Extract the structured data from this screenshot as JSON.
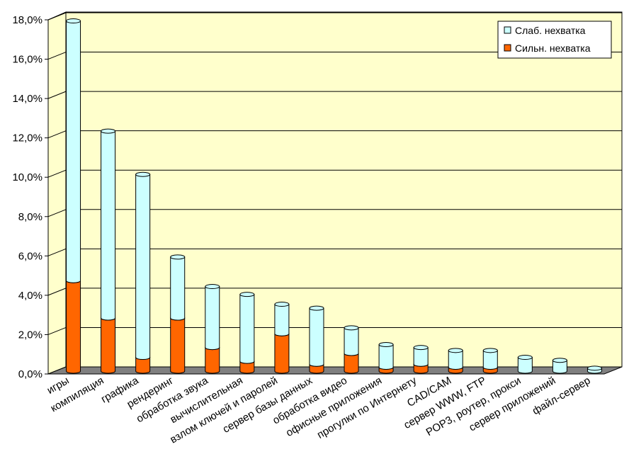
{
  "chart_data": {
    "type": "bar",
    "stacked": true,
    "categories": [
      "игры",
      "компиляция",
      "графика",
      "рендеринг",
      "обработка звука",
      "вычислительная",
      "взлом ключей и паролей",
      "сервер базы данных",
      "обработка видео",
      "офисные приложения",
      "прогулки по Интернету",
      "CAD/CAM",
      "сервер WWW, FTP",
      "POP3, роутер, прокси",
      "сервер приложений",
      "файл-сервер"
    ],
    "series": [
      {
        "name": "Сильн. нехватка",
        "color": "#ff6600",
        "values": [
          4.6,
          2.7,
          0.7,
          2.7,
          1.2,
          0.5,
          1.9,
          0.35,
          0.9,
          0.2,
          0.35,
          0.2,
          0.2,
          0.0,
          0.0,
          0.0
        ]
      },
      {
        "name": "Слаб. нехватка",
        "color": "#ccffff",
        "values": [
          13.2,
          9.5,
          9.3,
          3.1,
          3.1,
          3.4,
          1.5,
          2.85,
          1.3,
          1.15,
          0.85,
          0.85,
          0.85,
          0.7,
          0.55,
          0.15
        ]
      }
    ],
    "ylim": [
      0,
      18
    ],
    "yticks": [
      "0,0%",
      "2,0%",
      "4,0%",
      "6,0%",
      "8,0%",
      "10,0%",
      "12,0%",
      "14,0%",
      "16,0%",
      "18,0%"
    ],
    "grid": true,
    "legend_position": "top-right",
    "legend_entries": [
      "Слаб. нехватка",
      "Сильн. нехватка"
    ],
    "colors": {
      "wall": "#ffffcc",
      "floor": "#808080",
      "grid": "#000000"
    }
  }
}
